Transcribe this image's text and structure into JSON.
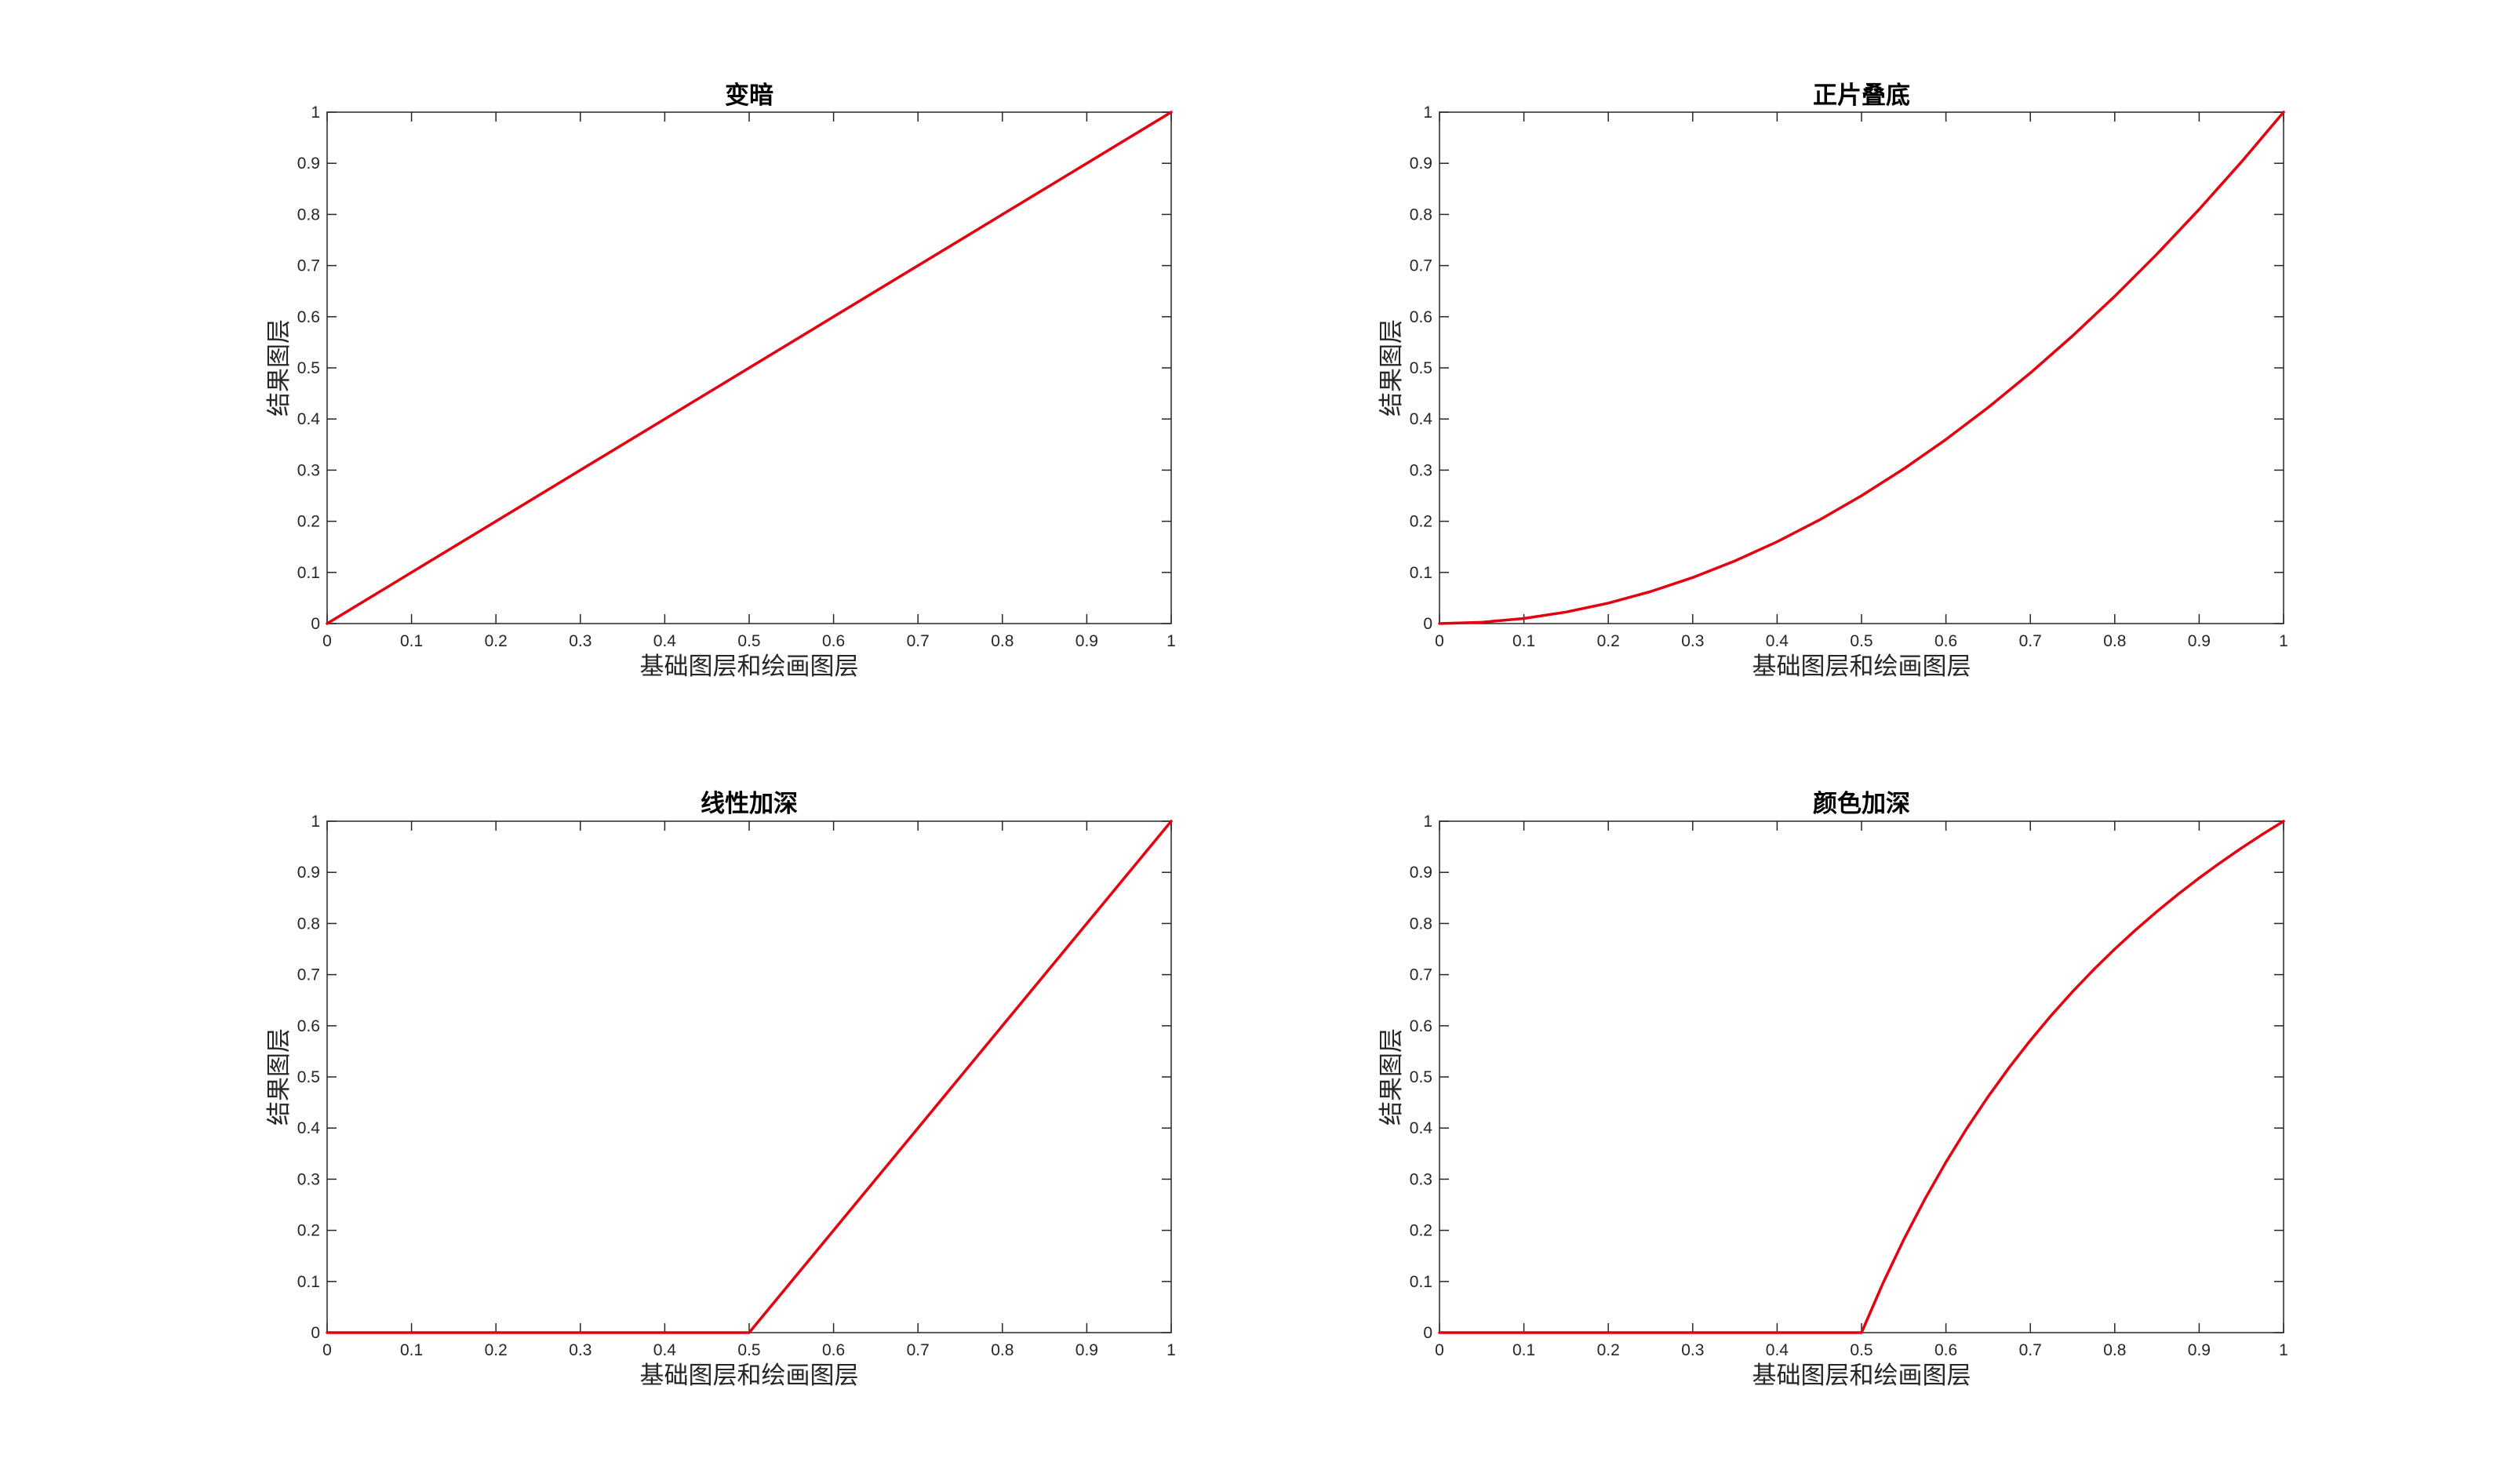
{
  "line_color": "#e3000f",
  "axis_color": "#262626",
  "chart_data": [
    {
      "type": "line",
      "title": "变暗",
      "xlabel": "基础图层和绘画图层",
      "ylabel": "结果图层",
      "xlim": [
        0,
        1
      ],
      "ylim": [
        0,
        1
      ],
      "xticks": [
        "0",
        "0.1",
        "0.2",
        "0.3",
        "0.4",
        "0.5",
        "0.6",
        "0.7",
        "0.8",
        "0.9",
        "1"
      ],
      "yticks": [
        "0",
        "0.1",
        "0.2",
        "0.3",
        "0.4",
        "0.5",
        "0.6",
        "0.7",
        "0.8",
        "0.9",
        "1"
      ],
      "grid": false,
      "x": [
        0,
        0.1,
        0.2,
        0.3,
        0.4,
        0.5,
        0.6,
        0.7,
        0.8,
        0.9,
        1
      ],
      "y": [
        0,
        0.1,
        0.2,
        0.3,
        0.4,
        0.5,
        0.6,
        0.7,
        0.8,
        0.9,
        1
      ]
    },
    {
      "type": "line",
      "title": "正片叠底",
      "xlabel": "基础图层和绘画图层",
      "ylabel": "结果图层",
      "xlim": [
        0,
        1
      ],
      "ylim": [
        0,
        1
      ],
      "xticks": [
        "0",
        "0.1",
        "0.2",
        "0.3",
        "0.4",
        "0.5",
        "0.6",
        "0.7",
        "0.8",
        "0.9",
        "1"
      ],
      "yticks": [
        "0",
        "0.1",
        "0.2",
        "0.3",
        "0.4",
        "0.5",
        "0.6",
        "0.7",
        "0.8",
        "0.9",
        "1"
      ],
      "grid": false,
      "x": [
        0,
        0.05,
        0.1,
        0.15,
        0.2,
        0.25,
        0.3,
        0.35,
        0.4,
        0.45,
        0.5,
        0.55,
        0.6,
        0.65,
        0.7,
        0.75,
        0.8,
        0.85,
        0.9,
        0.95,
        1
      ],
      "y": [
        0,
        0.0025,
        0.01,
        0.0225,
        0.04,
        0.0625,
        0.09,
        0.1225,
        0.16,
        0.2025,
        0.25,
        0.3025,
        0.36,
        0.4225,
        0.49,
        0.5625,
        0.64,
        0.7225,
        0.81,
        0.9025,
        1
      ]
    },
    {
      "type": "line",
      "title": "线性加深",
      "xlabel": "基础图层和绘画图层",
      "ylabel": "结果图层",
      "xlim": [
        0,
        1
      ],
      "ylim": [
        0,
        1
      ],
      "xticks": [
        "0",
        "0.1",
        "0.2",
        "0.3",
        "0.4",
        "0.5",
        "0.6",
        "0.7",
        "0.8",
        "0.9",
        "1"
      ],
      "yticks": [
        "0",
        "0.1",
        "0.2",
        "0.3",
        "0.4",
        "0.5",
        "0.6",
        "0.7",
        "0.8",
        "0.9",
        "1"
      ],
      "grid": false,
      "x": [
        0,
        0.5,
        0.6,
        0.7,
        0.8,
        0.9,
        1
      ],
      "y": [
        0,
        0,
        0.2,
        0.4,
        0.6,
        0.8,
        1
      ]
    },
    {
      "type": "line",
      "title": "颜色加深",
      "xlabel": "基础图层和绘画图层",
      "ylabel": "结果图层",
      "xlim": [
        0,
        1
      ],
      "ylim": [
        0,
        1
      ],
      "xticks": [
        "0",
        "0.1",
        "0.2",
        "0.3",
        "0.4",
        "0.5",
        "0.6",
        "0.7",
        "0.8",
        "0.9",
        "1"
      ],
      "yticks": [
        "0",
        "0.1",
        "0.2",
        "0.3",
        "0.4",
        "0.5",
        "0.6",
        "0.7",
        "0.8",
        "0.9",
        "1"
      ],
      "grid": false,
      "x": [
        0,
        0.5,
        0.525,
        0.55,
        0.575,
        0.6,
        0.625,
        0.65,
        0.675,
        0.7,
        0.725,
        0.75,
        0.775,
        0.8,
        0.825,
        0.85,
        0.875,
        0.9,
        0.925,
        0.95,
        0.975,
        1
      ],
      "y": [
        0,
        0,
        0.0952,
        0.1818,
        0.2609,
        0.3333,
        0.4,
        0.4615,
        0.5185,
        0.5714,
        0.6207,
        0.6667,
        0.7097,
        0.75,
        0.7879,
        0.8235,
        0.8571,
        0.8889,
        0.9189,
        0.9474,
        0.9744,
        1
      ]
    }
  ]
}
